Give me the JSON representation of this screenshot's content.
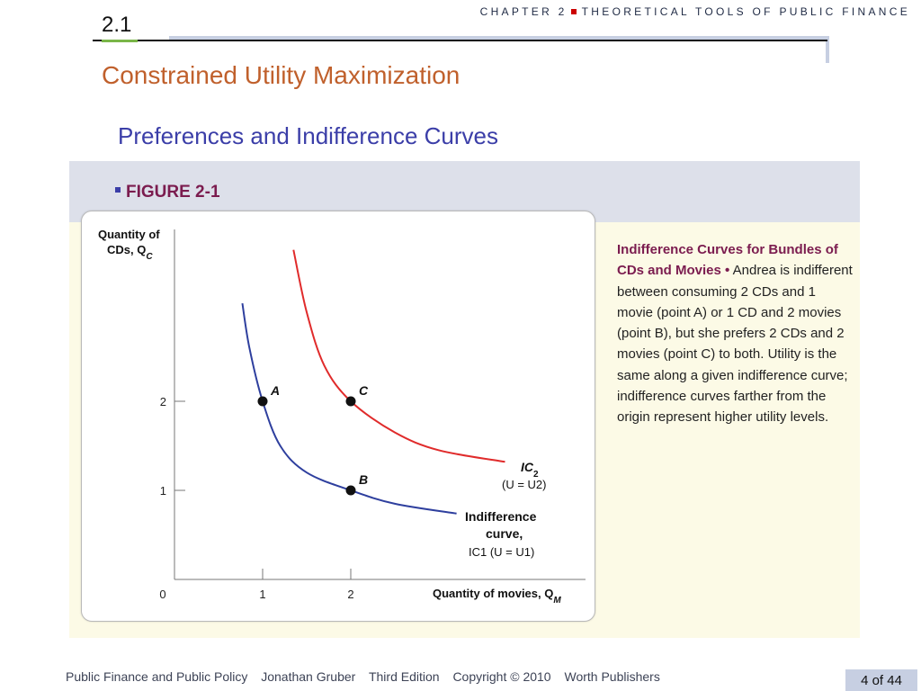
{
  "header": {
    "chapter": "CHAPTER 2",
    "chapter_title": "THEORETICAL TOOLS OF PUBLIC FINANCE",
    "section_number": "2.1"
  },
  "slide": {
    "title": "Constrained Utility Maximization",
    "subtitle": "Preferences and Indifference Curves"
  },
  "figure": {
    "label": "FIGURE 2-1",
    "caption_title": "Indifference Curves for Bundles of CDs and Movies",
    "caption_bullet": "•",
    "caption_body": "Andrea is indifferent between consuming 2 CDs and 1 movie (point A) or 1 CD and 2 movies (point B), but she prefers 2 CDs and 2 movies (point C) to both. Utility is the same along a given indifference curve; indifference curves farther from the origin represent higher utility levels."
  },
  "chart_data": {
    "type": "line",
    "ylabel_line1": "Quantity of",
    "ylabel_line2": "CDs, Q",
    "ylabel_sub": "C",
    "xlabel": "Quantity of movies, Q",
    "xlabel_sub": "M",
    "origin_label": "0",
    "x_ticks": [
      1,
      2
    ],
    "y_ticks": [
      1,
      2
    ],
    "xlim": [
      0,
      3.0
    ],
    "ylim": [
      0,
      4.0
    ],
    "series": [
      {
        "name": "IC1",
        "label_lines": [
          "Indifference",
          "curve,",
          "IC1 (U = U1)"
        ],
        "color": "#2e3f9e",
        "points": [
          [
            0.77,
            3.1
          ],
          [
            0.85,
            2.6
          ],
          [
            1.0,
            2.0
          ],
          [
            1.2,
            1.5
          ],
          [
            1.5,
            1.2
          ],
          [
            2.0,
            1.0
          ],
          [
            2.5,
            0.85
          ],
          [
            3.2,
            0.74
          ]
        ]
      },
      {
        "name": "IC2",
        "label_lines": [
          "IC2",
          "(U = U2)"
        ],
        "color": "#e02b2b",
        "points": [
          [
            1.35,
            3.7
          ],
          [
            1.5,
            3.0
          ],
          [
            1.7,
            2.4
          ],
          [
            2.0,
            2.0
          ],
          [
            2.5,
            1.65
          ],
          [
            3.0,
            1.45
          ],
          [
            3.75,
            1.32
          ]
        ]
      }
    ],
    "points": [
      {
        "label": "A",
        "x": 1,
        "y": 2
      },
      {
        "label": "B",
        "x": 2,
        "y": 1
      },
      {
        "label": "C",
        "x": 2,
        "y": 2
      }
    ]
  },
  "footer": {
    "text_1": "Public Finance and Public Policy",
    "text_2": "Jonathan Gruber",
    "text_3": "Third Edition",
    "text_4": "Copyright © 2010",
    "text_5": "Worth Publishers",
    "page": "4 of 44"
  }
}
